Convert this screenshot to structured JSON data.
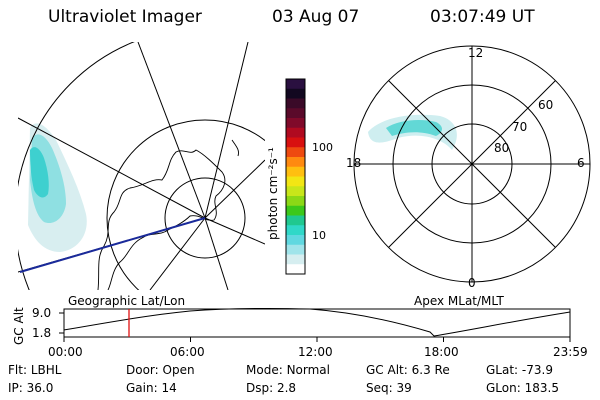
{
  "header": {
    "title": "Ultraviolet Imager",
    "date": "03 Aug 07",
    "time": "03:07:49 UT"
  },
  "colorbar": {
    "unit": "photon cm⁻²s⁻¹",
    "ticks": [
      "100",
      "10"
    ],
    "colors": [
      "#2a1040",
      "#120820",
      "#3a0a28",
      "#5a0a2a",
      "#800a2a",
      "#b00a20",
      "#d81010",
      "#ee4a10",
      "#ff8a10",
      "#ffbf10",
      "#f2e614",
      "#c8e61a",
      "#8cd816",
      "#3cc81a",
      "#20c890",
      "#30d8c8",
      "#60d8e0",
      "#a0e4ea",
      "#d6eef0",
      "#ffffff"
    ]
  },
  "geo_panel": {
    "label": "Geographic Lat/Lon"
  },
  "polar_panel": {
    "label": "Apex MLat/MLT",
    "lat_labels": [
      "60",
      "70",
      "80"
    ],
    "mlt_labels": [
      "12",
      "18",
      "6",
      "0"
    ]
  },
  "alt_plot": {
    "ylabel": "GC Alt",
    "yticks": [
      "9.0",
      "1.8"
    ],
    "xticks": [
      "00:00",
      "06:00",
      "12:00",
      "18:00",
      "23:59"
    ]
  },
  "status": {
    "row1": [
      {
        "label": "Flt:",
        "value": "LBHL"
      },
      {
        "label": "Door:",
        "value": "Open"
      },
      {
        "label": "Mode:",
        "value": "Normal"
      },
      {
        "label": "GC Alt:",
        "value": "6.3 Re"
      },
      {
        "label": "GLat:",
        "value": "-73.9"
      }
    ],
    "row2": [
      {
        "label": "IP:",
        "value": "36.0"
      },
      {
        "label": "Gain:",
        "value": "14"
      },
      {
        "label": "Dsp:",
        "value": "2.8"
      },
      {
        "label": "Seq:",
        "value": "39"
      },
      {
        "label": "GLon:",
        "value": "183.5"
      }
    ]
  }
}
